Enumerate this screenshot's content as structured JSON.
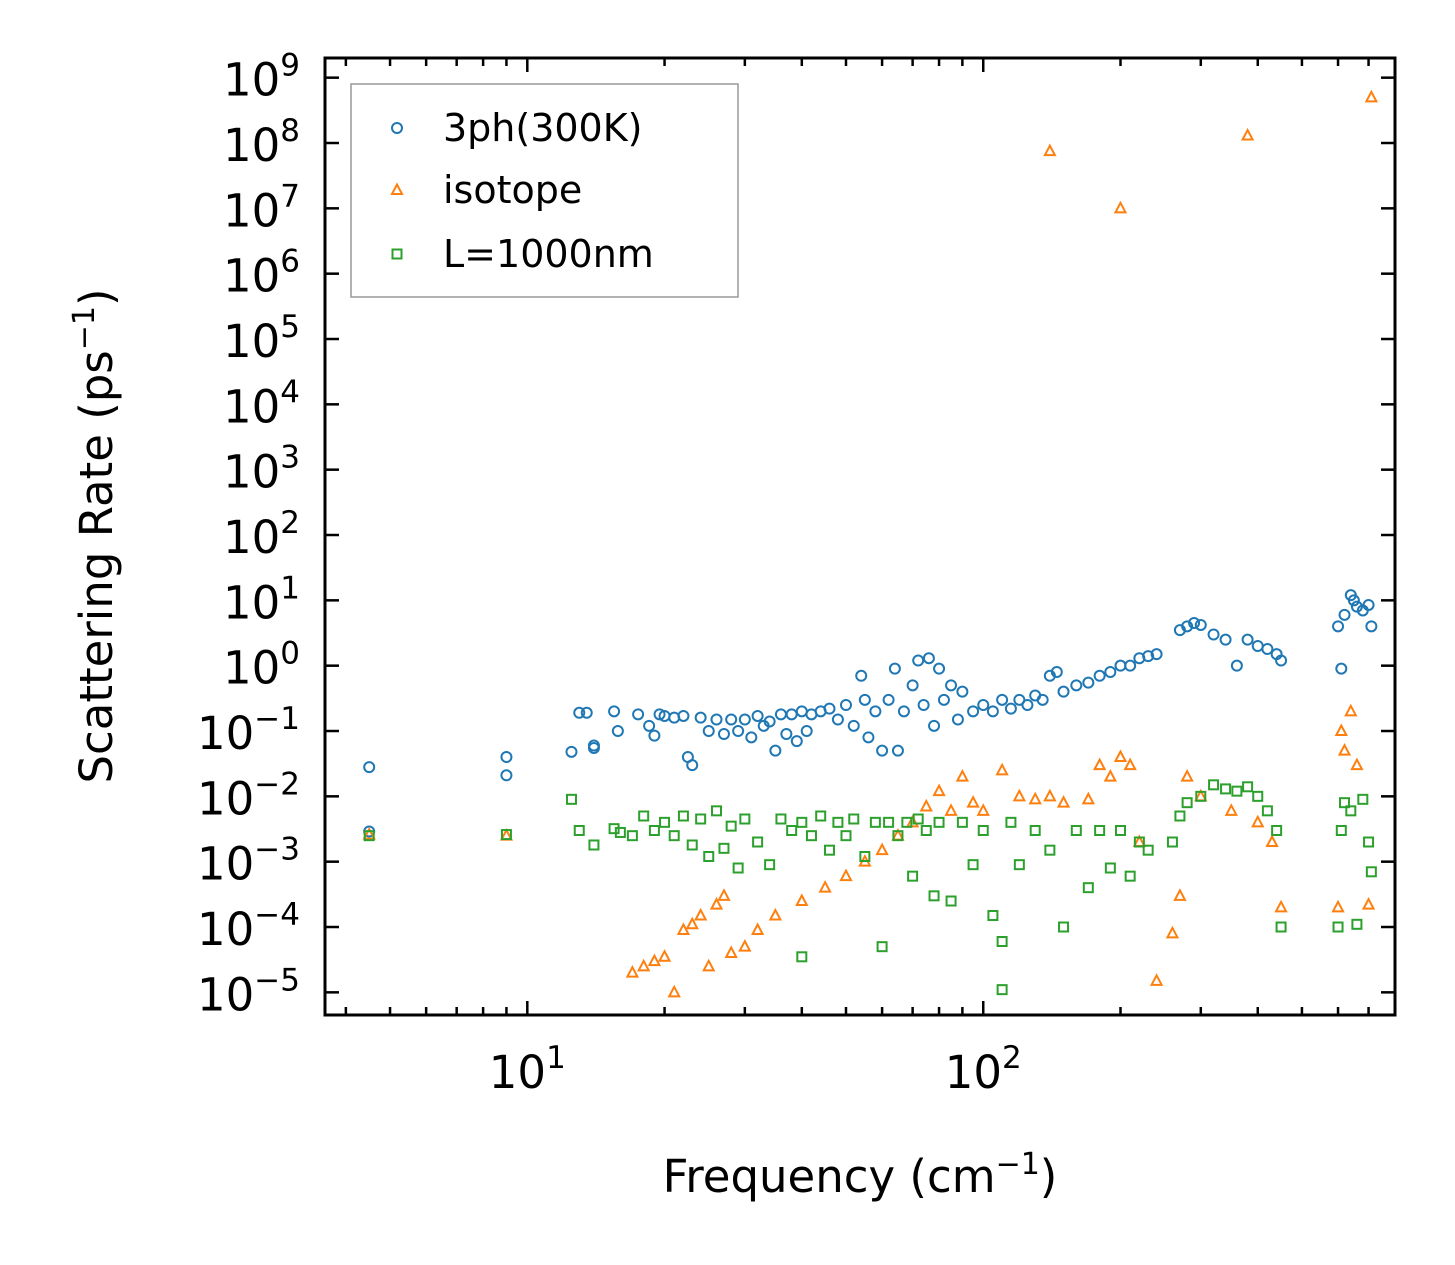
{
  "chart_data": {
    "type": "scatter",
    "xscale": "log",
    "yscale": "log",
    "xlabel": "Frequency (cm",
    "xlabel_sup": "−1",
    "xlabel_tail": ")",
    "ylabel": "Scattering Rate (ps",
    "ylabel_sup": "−1",
    "ylabel_tail": ")",
    "xlim": [
      3.6,
      800
    ],
    "ylim": [
      4.5e-06,
      2000000000
    ],
    "xticks": [
      {
        "value": 10,
        "base": "10",
        "exp": "1"
      },
      {
        "value": 100,
        "base": "10",
        "exp": "2"
      }
    ],
    "yticks": [
      {
        "value": 1e-05,
        "base": "10",
        "exp": "−5"
      },
      {
        "value": 0.0001,
        "base": "10",
        "exp": "−4"
      },
      {
        "value": 0.001,
        "base": "10",
        "exp": "−3"
      },
      {
        "value": 0.01,
        "base": "10",
        "exp": "−2"
      },
      {
        "value": 0.1,
        "base": "10",
        "exp": "−1"
      },
      {
        "value": 1,
        "base": "10",
        "exp": "0"
      },
      {
        "value": 10,
        "base": "10",
        "exp": "1"
      },
      {
        "value": 100,
        "base": "10",
        "exp": "2"
      },
      {
        "value": 1000,
        "base": "10",
        "exp": "3"
      },
      {
        "value": 10000,
        "base": "10",
        "exp": "4"
      },
      {
        "value": 100000,
        "base": "10",
        "exp": "5"
      },
      {
        "value": 1000000,
        "base": "10",
        "exp": "6"
      },
      {
        "value": 10000000,
        "base": "10",
        "exp": "7"
      },
      {
        "value": 100000000,
        "base": "10",
        "exp": "8"
      },
      {
        "value": 1000000000,
        "base": "10",
        "exp": "9"
      }
    ],
    "legend_position": "top-left",
    "series": [
      {
        "name": "3ph(300K)",
        "marker": "circle",
        "color": "#1f77b4",
        "points": [
          [
            4.5,
            0.028
          ],
          [
            4.5,
            0.0029
          ],
          [
            9.0,
            0.04
          ],
          [
            9.0,
            0.021
          ],
          [
            12.5,
            0.048
          ],
          [
            13.0,
            0.19
          ],
          [
            13.5,
            0.19
          ],
          [
            14.0,
            0.06
          ],
          [
            14.0,
            0.055
          ],
          [
            15.5,
            0.2
          ],
          [
            15.8,
            0.1
          ],
          [
            17.5,
            0.18
          ],
          [
            18.5,
            0.12
          ],
          [
            19.0,
            0.085
          ],
          [
            19.5,
            0.18
          ],
          [
            20.0,
            0.17
          ],
          [
            21.0,
            0.16
          ],
          [
            22.0,
            0.17
          ],
          [
            22.5,
            0.04
          ],
          [
            23.0,
            0.03
          ],
          [
            24.0,
            0.16
          ],
          [
            25.0,
            0.1
          ],
          [
            26.0,
            0.15
          ],
          [
            27.0,
            0.09
          ],
          [
            28.0,
            0.15
          ],
          [
            29.0,
            0.1
          ],
          [
            30.0,
            0.15
          ],
          [
            31.0,
            0.08
          ],
          [
            32.0,
            0.17
          ],
          [
            33.0,
            0.12
          ],
          [
            34.0,
            0.14
          ],
          [
            35.0,
            0.05
          ],
          [
            36.0,
            0.18
          ],
          [
            37.0,
            0.09
          ],
          [
            38.0,
            0.18
          ],
          [
            39.0,
            0.07
          ],
          [
            40.0,
            0.2
          ],
          [
            41.0,
            0.1
          ],
          [
            42.0,
            0.18
          ],
          [
            44.0,
            0.2
          ],
          [
            46.0,
            0.22
          ],
          [
            48.0,
            0.15
          ],
          [
            50.0,
            0.25
          ],
          [
            52.0,
            0.12
          ],
          [
            54.0,
            0.7
          ],
          [
            55.0,
            0.3
          ],
          [
            56.0,
            0.08
          ],
          [
            58.0,
            0.2
          ],
          [
            60.0,
            0.05
          ],
          [
            62.0,
            0.3
          ],
          [
            64.0,
            0.9
          ],
          [
            65.0,
            0.05
          ],
          [
            67.0,
            0.2
          ],
          [
            70.0,
            0.5
          ],
          [
            72.0,
            1.2
          ],
          [
            74.0,
            0.25
          ],
          [
            76.0,
            1.3
          ],
          [
            78.0,
            0.12
          ],
          [
            80.0,
            0.9
          ],
          [
            82.0,
            0.3
          ],
          [
            85.0,
            0.5
          ],
          [
            88.0,
            0.15
          ],
          [
            90.0,
            0.4
          ],
          [
            95.0,
            0.2
          ],
          [
            100.0,
            0.25
          ],
          [
            105.0,
            0.2
          ],
          [
            110.0,
            0.3
          ],
          [
            115.0,
            0.22
          ],
          [
            120.0,
            0.3
          ],
          [
            125.0,
            0.25
          ],
          [
            130.0,
            0.35
          ],
          [
            135.0,
            0.3
          ],
          [
            140.0,
            0.7
          ],
          [
            145.0,
            0.8
          ],
          [
            150.0,
            0.4
          ],
          [
            160.0,
            0.5
          ],
          [
            170.0,
            0.55
          ],
          [
            180.0,
            0.7
          ],
          [
            190.0,
            0.8
          ],
          [
            200.0,
            1.0
          ],
          [
            210.0,
            1.0
          ],
          [
            220.0,
            1.3
          ],
          [
            230.0,
            1.4
          ],
          [
            240.0,
            1.5
          ],
          [
            270.0,
            3.5
          ],
          [
            280.0,
            4.0
          ],
          [
            290.0,
            4.5
          ],
          [
            300.0,
            4.2
          ],
          [
            320.0,
            3.0
          ],
          [
            340.0,
            2.5
          ],
          [
            360.0,
            1.0
          ],
          [
            380.0,
            2.5
          ],
          [
            400.0,
            2.0
          ],
          [
            420.0,
            1.8
          ],
          [
            440.0,
            1.5
          ],
          [
            450.0,
            1.2
          ],
          [
            600.0,
            4.0
          ],
          [
            610.0,
            0.9
          ],
          [
            620.0,
            6.0
          ],
          [
            640.0,
            12.0
          ],
          [
            650.0,
            10.0
          ],
          [
            660.0,
            8.0
          ],
          [
            680.0,
            7.0
          ],
          [
            700.0,
            8.5
          ],
          [
            710.0,
            4.0
          ]
        ]
      },
      {
        "name": "isotope",
        "marker": "triangle",
        "color": "#ff7f0e",
        "points": [
          [
            4.5,
            0.0026
          ],
          [
            9.0,
            0.0025
          ],
          [
            17.0,
            2e-05
          ],
          [
            18.0,
            2.5e-05
          ],
          [
            19.0,
            3e-05
          ],
          [
            20.0,
            3.5e-05
          ],
          [
            21.0,
            1e-05
          ],
          [
            22.0,
            9e-05
          ],
          [
            23.0,
            0.00011
          ],
          [
            24.0,
            0.00015
          ],
          [
            25.0,
            2.5e-05
          ],
          [
            26.0,
            0.00022
          ],
          [
            27.0,
            0.0003
          ],
          [
            28.0,
            4e-05
          ],
          [
            30.0,
            5e-05
          ],
          [
            32.0,
            9e-05
          ],
          [
            35.0,
            0.00015
          ],
          [
            40.0,
            0.00025
          ],
          [
            45.0,
            0.0004
          ],
          [
            50.0,
            0.0006
          ],
          [
            55.0,
            0.001
          ],
          [
            60.0,
            0.0015
          ],
          [
            65.0,
            0.0025
          ],
          [
            70.0,
            0.004
          ],
          [
            75.0,
            0.007
          ],
          [
            80.0,
            0.012
          ],
          [
            85.0,
            0.006
          ],
          [
            90.0,
            0.02
          ],
          [
            95.0,
            0.008
          ],
          [
            100.0,
            0.006
          ],
          [
            110.0,
            0.025
          ],
          [
            120.0,
            0.01
          ],
          [
            130.0,
            0.009
          ],
          [
            140.0,
            0.01
          ],
          [
            150.0,
            0.008
          ],
          [
            170.0,
            0.009
          ],
          [
            180.0,
            0.03
          ],
          [
            190.0,
            0.02
          ],
          [
            200.0,
            0.04
          ],
          [
            210.0,
            0.03
          ],
          [
            220.0,
            0.002
          ],
          [
            240.0,
            1.5e-05
          ],
          [
            260.0,
            8e-05
          ],
          [
            270.0,
            0.0003
          ],
          [
            280.0,
            0.02
          ],
          [
            300.0,
            0.01
          ],
          [
            350.0,
            0.006
          ],
          [
            400.0,
            0.004
          ],
          [
            430.0,
            0.002
          ],
          [
            450.0,
            0.0002
          ],
          [
            600.0,
            0.0002
          ],
          [
            610.0,
            0.1
          ],
          [
            620.0,
            0.05
          ],
          [
            640.0,
            0.2
          ],
          [
            660.0,
            0.03
          ],
          [
            700.0,
            0.00022
          ],
          [
            140.0,
            75000000.0
          ],
          [
            200.0,
            10000000.0
          ],
          [
            380.0,
            130000000.0
          ],
          [
            710.0,
            500000000.0
          ]
        ]
      },
      {
        "name": "L=1000nm",
        "marker": "square",
        "color": "#2ca02c",
        "points": [
          [
            4.5,
            0.0025
          ],
          [
            9.0,
            0.0026
          ],
          [
            12.5,
            0.009
          ],
          [
            13.0,
            0.003
          ],
          [
            14.0,
            0.0018
          ],
          [
            15.5,
            0.0032
          ],
          [
            16.0,
            0.0028
          ],
          [
            17.0,
            0.0025
          ],
          [
            18.0,
            0.005
          ],
          [
            19.0,
            0.003
          ],
          [
            20.0,
            0.004
          ],
          [
            21.0,
            0.0025
          ],
          [
            22.0,
            0.005
          ],
          [
            23.0,
            0.0018
          ],
          [
            24.0,
            0.0045
          ],
          [
            25.0,
            0.0012
          ],
          [
            26.0,
            0.006
          ],
          [
            27.0,
            0.0016
          ],
          [
            28.0,
            0.0035
          ],
          [
            29.0,
            0.0008
          ],
          [
            30.0,
            0.0045
          ],
          [
            32.0,
            0.002
          ],
          [
            34.0,
            0.0009
          ],
          [
            36.0,
            0.0045
          ],
          [
            38.0,
            0.003
          ],
          [
            40.0,
            0.004
          ],
          [
            40.0,
            3.5e-05
          ],
          [
            42.0,
            0.0025
          ],
          [
            44.0,
            0.005
          ],
          [
            46.0,
            0.0015
          ],
          [
            48.0,
            0.004
          ],
          [
            50.0,
            0.0025
          ],
          [
            52.0,
            0.0045
          ],
          [
            55.0,
            0.0012
          ],
          [
            58.0,
            0.004
          ],
          [
            60.0,
            5e-05
          ],
          [
            62.0,
            0.004
          ],
          [
            65.0,
            0.0025
          ],
          [
            68.0,
            0.004
          ],
          [
            70.0,
            0.0006
          ],
          [
            72.0,
            0.0045
          ],
          [
            75.0,
            0.003
          ],
          [
            78.0,
            0.0003
          ],
          [
            80.0,
            0.004
          ],
          [
            85.0,
            0.00025
          ],
          [
            90.0,
            0.004
          ],
          [
            95.0,
            0.0009
          ],
          [
            100.0,
            0.003
          ],
          [
            105.0,
            0.00015
          ],
          [
            110.0,
            6e-05
          ],
          [
            110.0,
            1.1e-05
          ],
          [
            115.0,
            0.004
          ],
          [
            120.0,
            0.0009
          ],
          [
            130.0,
            0.003
          ],
          [
            140.0,
            0.0015
          ],
          [
            150.0,
            0.0001
          ],
          [
            160.0,
            0.003
          ],
          [
            170.0,
            0.0004
          ],
          [
            180.0,
            0.003
          ],
          [
            190.0,
            0.0008
          ],
          [
            200.0,
            0.003
          ],
          [
            210.0,
            0.0006
          ],
          [
            220.0,
            0.002
          ],
          [
            230.0,
            0.0015
          ],
          [
            260.0,
            0.002
          ],
          [
            270.0,
            0.005
          ],
          [
            280.0,
            0.008
          ],
          [
            300.0,
            0.01
          ],
          [
            320.0,
            0.015
          ],
          [
            340.0,
            0.013
          ],
          [
            360.0,
            0.012
          ],
          [
            380.0,
            0.014
          ],
          [
            400.0,
            0.01
          ],
          [
            420.0,
            0.006
          ],
          [
            440.0,
            0.003
          ],
          [
            450.0,
            0.0001
          ],
          [
            600.0,
            0.0001
          ],
          [
            610.0,
            0.003
          ],
          [
            620.0,
            0.008
          ],
          [
            640.0,
            0.006
          ],
          [
            660.0,
            0.00011
          ],
          [
            680.0,
            0.009
          ],
          [
            700.0,
            0.002
          ],
          [
            710.0,
            0.0007
          ]
        ]
      }
    ]
  }
}
